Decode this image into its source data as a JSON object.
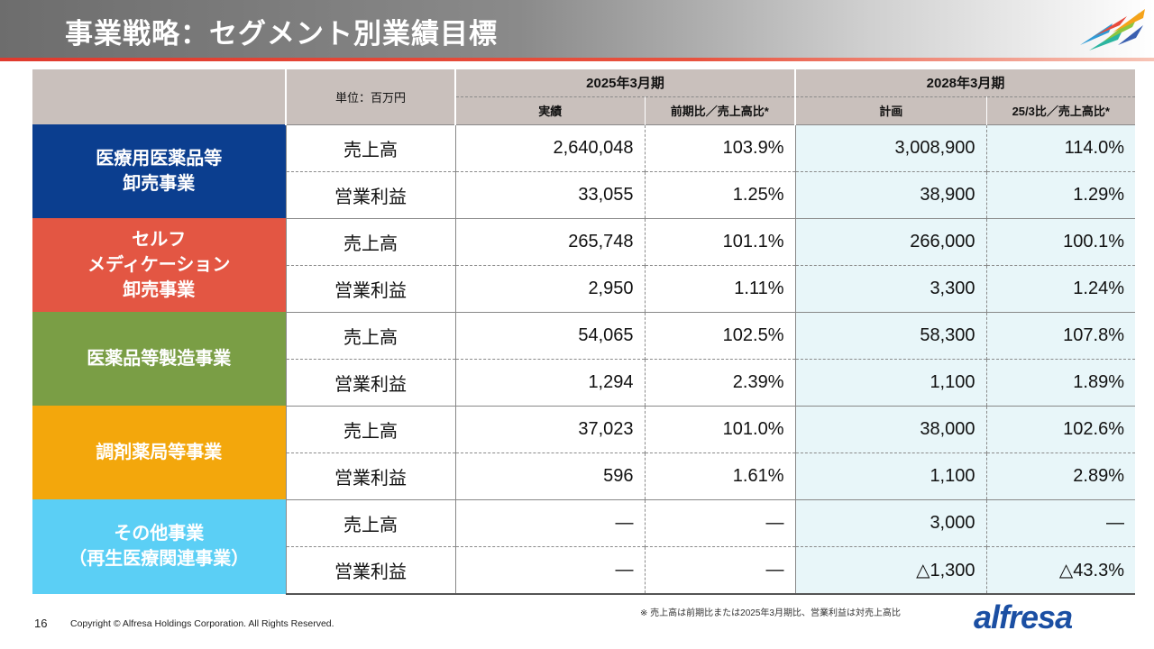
{
  "page": {
    "title": "事業戦略：セグメント別業績目標",
    "page_number": "16",
    "copyright": "Copyright © Alfresa Holdings Corporation. All Rights Reserved.",
    "note": "※ 売上高は前期比または2025年3月期比、営業利益は対売上高比",
    "brand": "alfresa"
  },
  "table": {
    "unit": "単位：百万円",
    "period1": "2025年3月期",
    "period2": "2028年3月期",
    "col_actual": "実績",
    "col_ratio1": "前期比／売上高比*",
    "col_plan": "計画",
    "col_ratio2": "25/3比／売上高比*",
    "segments": [
      {
        "name_lines": [
          "医療用医薬品等",
          "卸売事業"
        ],
        "color": "#0b3e8f",
        "rows": [
          {
            "label": "売上高",
            "actual": "2,640,048",
            "ratio1": "103.9%",
            "plan": "3,008,900",
            "ratio2": "114.0%"
          },
          {
            "label": "営業利益",
            "actual": "33,055",
            "ratio1": "1.25%",
            "plan": "38,900",
            "ratio2": "1.29%"
          }
        ]
      },
      {
        "name_lines": [
          "セルフ",
          "メディケーション",
          "卸売事業"
        ],
        "color": "#e35643",
        "rows": [
          {
            "label": "売上高",
            "actual": "265,748",
            "ratio1": "101.1%",
            "plan": "266,000",
            "ratio2": "100.1%"
          },
          {
            "label": "営業利益",
            "actual": "2,950",
            "ratio1": "1.11%",
            "plan": "3,300",
            "ratio2": "1.24%"
          }
        ]
      },
      {
        "name_lines": [
          "医薬品等製造事業"
        ],
        "color": "#7a9e45",
        "rows": [
          {
            "label": "売上高",
            "actual": "54,065",
            "ratio1": "102.5%",
            "plan": "58,300",
            "ratio2": "107.8%"
          },
          {
            "label": "営業利益",
            "actual": "1,294",
            "ratio1": "2.39%",
            "plan": "1,100",
            "ratio2": "1.89%"
          }
        ]
      },
      {
        "name_lines": [
          "調剤薬局等事業"
        ],
        "color": "#f3a70c",
        "rows": [
          {
            "label": "売上高",
            "actual": "37,023",
            "ratio1": "101.0%",
            "plan": "38,000",
            "ratio2": "102.6%"
          },
          {
            "label": "営業利益",
            "actual": "596",
            "ratio1": "1.61%",
            "plan": "1,100",
            "ratio2": "2.89%"
          }
        ]
      },
      {
        "name_lines": [
          "その他事業",
          "（再生医療関連事業）"
        ],
        "color": "#5bcff5",
        "rows": [
          {
            "label": "売上高",
            "actual": "—",
            "ratio1": "—",
            "plan": "3,000",
            "ratio2": "—"
          },
          {
            "label": "営業利益",
            "actual": "—",
            "ratio1": "—",
            "plan": "△1,300",
            "ratio2": "△43.3%"
          }
        ]
      }
    ]
  }
}
